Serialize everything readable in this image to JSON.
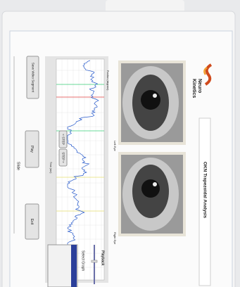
{
  "header": {
    "title": "OKN Trapezoidal Analysis",
    "brand_top": "Neuro",
    "brand_bottom": "Kinetics"
  },
  "eyes": {
    "left": "Left Eye",
    "right": "Right Eye"
  },
  "graph": {
    "y_label": "Position (degrees)",
    "x_label": "Time (sec)"
  },
  "buttons": {
    "save": "Save Video Segment",
    "step_back": "< STEP",
    "step_forward": "STEP >",
    "play": "Play",
    "exit": "Exit"
  },
  "slide_label": "Slide",
  "playback": {
    "label": "Playback"
  },
  "select_graph": {
    "label": "Select Graph"
  }
}
